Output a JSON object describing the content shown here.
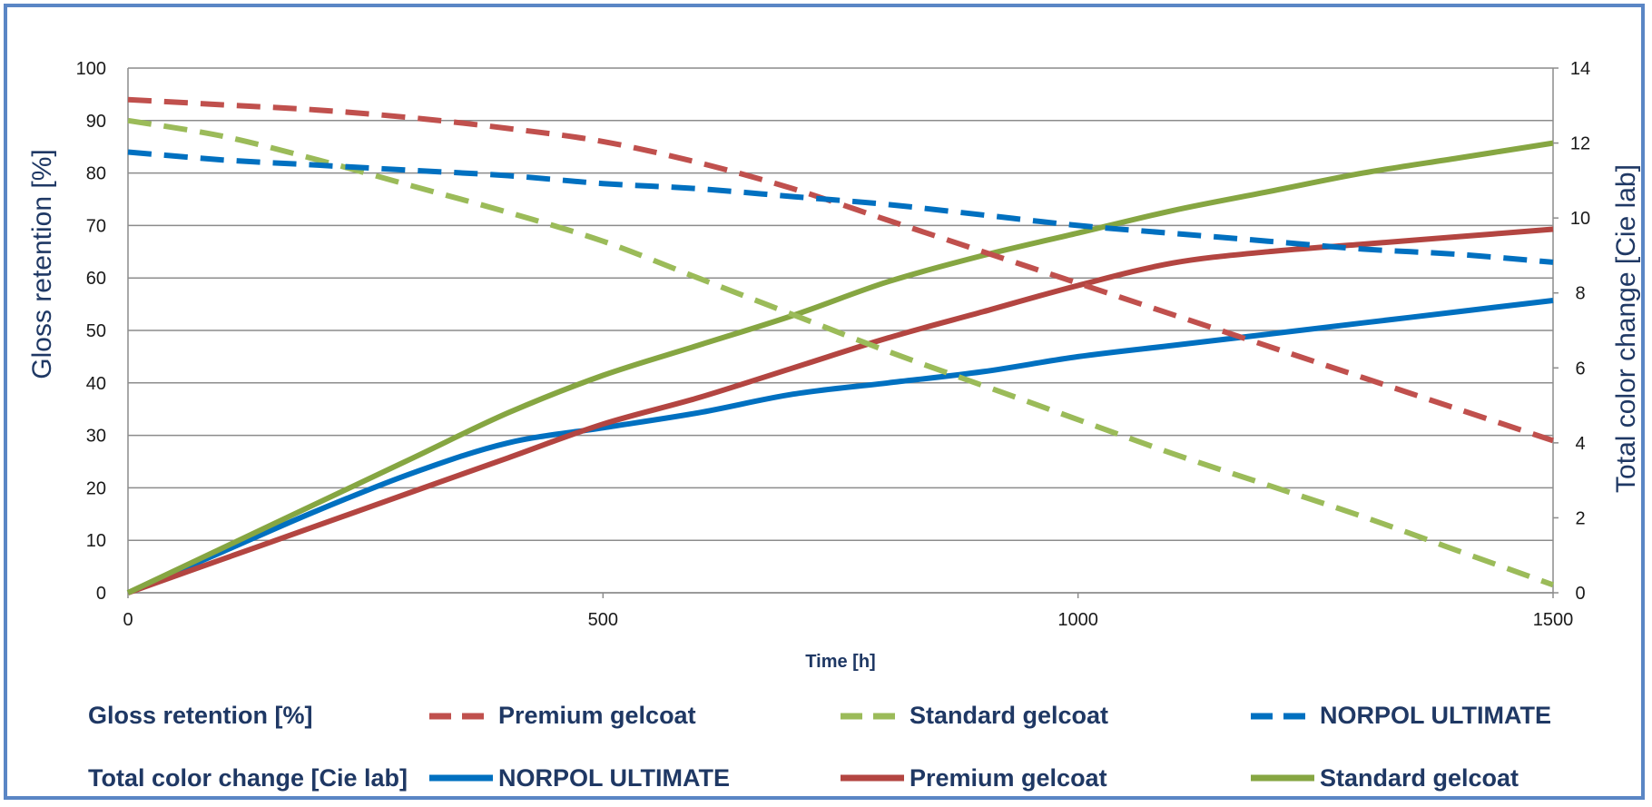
{
  "chart_data": {
    "type": "line",
    "title": "",
    "xlabel": "Time [h]",
    "ylabel_left": "Gloss retention [%]",
    "ylabel_right": "Total color change [Cie lab]",
    "xlim": [
      0,
      1500
    ],
    "ylim_left": [
      0,
      100
    ],
    "ylim_right": [
      0,
      14
    ],
    "x_ticks": [
      0,
      500,
      1000,
      1500
    ],
    "y_ticks_left": [
      0,
      10,
      20,
      30,
      40,
      50,
      60,
      70,
      80,
      90,
      100
    ],
    "y_ticks_right": [
      0,
      2,
      4,
      6,
      8,
      10,
      12,
      14
    ],
    "grid": "horizontal",
    "legend_position": "bottom",
    "legend_groups": [
      "Gloss retention [%]",
      "Total color change [Cie lab]"
    ],
    "colors": {
      "premium": "#c0504d",
      "standard": "#9bbb59",
      "norpol": "#0070c0",
      "premium_solid": "#b34541",
      "standard_solid": "#86a642"
    },
    "series": [
      {
        "name": "Premium gelcoat",
        "group": "Gloss retention [%]",
        "axis": "left",
        "style": "dashed",
        "color": "#c0504d",
        "points": [
          [
            0,
            94
          ],
          [
            100,
            93
          ],
          [
            200,
            92
          ],
          [
            300,
            90.5
          ],
          [
            400,
            88.5
          ],
          [
            500,
            86
          ],
          [
            600,
            82
          ],
          [
            700,
            77
          ],
          [
            800,
            71
          ],
          [
            900,
            65
          ],
          [
            1000,
            59
          ],
          [
            1100,
            53
          ],
          [
            1200,
            47
          ],
          [
            1300,
            41
          ],
          [
            1400,
            35
          ],
          [
            1500,
            29
          ]
        ]
      },
      {
        "name": "Standard gelcoat",
        "group": "Gloss retention [%]",
        "axis": "left",
        "style": "dashed",
        "color": "#9bbb59",
        "points": [
          [
            0,
            90
          ],
          [
            100,
            87
          ],
          [
            200,
            82.5
          ],
          [
            300,
            77.5
          ],
          [
            400,
            72.5
          ],
          [
            500,
            67
          ],
          [
            600,
            60
          ],
          [
            700,
            53
          ],
          [
            800,
            46
          ],
          [
            900,
            39.5
          ],
          [
            1000,
            33
          ],
          [
            1100,
            26.5
          ],
          [
            1200,
            20.5
          ],
          [
            1300,
            14.5
          ],
          [
            1400,
            8
          ],
          [
            1500,
            1.5
          ]
        ]
      },
      {
        "name": "NORPOL ULTIMATE",
        "group": "Gloss retention [%]",
        "axis": "left",
        "style": "dashed",
        "color": "#0070c0",
        "points": [
          [
            0,
            84
          ],
          [
            100,
            82.5
          ],
          [
            200,
            81.5
          ],
          [
            300,
            80.5
          ],
          [
            400,
            79.5
          ],
          [
            500,
            78
          ],
          [
            600,
            77
          ],
          [
            700,
            75.5
          ],
          [
            800,
            74
          ],
          [
            900,
            72
          ],
          [
            1000,
            70
          ],
          [
            1100,
            68.5
          ],
          [
            1200,
            67
          ],
          [
            1300,
            65.5
          ],
          [
            1400,
            64.5
          ],
          [
            1500,
            63
          ]
        ]
      },
      {
        "name": "NORPOL ULTIMATE",
        "group": "Total color change [Cie lab]",
        "axis": "right",
        "style": "solid",
        "color": "#0070c0",
        "points": [
          [
            0,
            0
          ],
          [
            100,
            1.1
          ],
          [
            200,
            2.2
          ],
          [
            300,
            3.2
          ],
          [
            400,
            4.0
          ],
          [
            500,
            4.4
          ],
          [
            600,
            4.8
          ],
          [
            700,
            5.3
          ],
          [
            800,
            5.6
          ],
          [
            900,
            5.9
          ],
          [
            1000,
            6.3
          ],
          [
            1100,
            6.6
          ],
          [
            1200,
            6.9
          ],
          [
            1300,
            7.2
          ],
          [
            1400,
            7.5
          ],
          [
            1500,
            7.8
          ]
        ]
      },
      {
        "name": "Premium gelcoat",
        "group": "Total color change [Cie lab]",
        "axis": "right",
        "style": "solid",
        "color": "#b34541",
        "points": [
          [
            0,
            0
          ],
          [
            100,
            0.9
          ],
          [
            200,
            1.8
          ],
          [
            300,
            2.7
          ],
          [
            400,
            3.6
          ],
          [
            500,
            4.5
          ],
          [
            600,
            5.2
          ],
          [
            700,
            6.0
          ],
          [
            800,
            6.8
          ],
          [
            900,
            7.5
          ],
          [
            1000,
            8.2
          ],
          [
            1100,
            8.8
          ],
          [
            1200,
            9.1
          ],
          [
            1300,
            9.3
          ],
          [
            1400,
            9.5
          ],
          [
            1500,
            9.7
          ]
        ]
      },
      {
        "name": "Standard gelcoat",
        "group": "Total color change [Cie lab]",
        "axis": "right",
        "style": "solid",
        "color": "#86a642",
        "points": [
          [
            0,
            0
          ],
          [
            100,
            1.2
          ],
          [
            200,
            2.4
          ],
          [
            300,
            3.6
          ],
          [
            400,
            4.8
          ],
          [
            500,
            5.8
          ],
          [
            600,
            6.6
          ],
          [
            700,
            7.4
          ],
          [
            800,
            8.3
          ],
          [
            900,
            9.0
          ],
          [
            1000,
            9.6
          ],
          [
            1100,
            10.2
          ],
          [
            1200,
            10.7
          ],
          [
            1300,
            11.2
          ],
          [
            1400,
            11.6
          ],
          [
            1500,
            12.0
          ]
        ]
      }
    ]
  }
}
